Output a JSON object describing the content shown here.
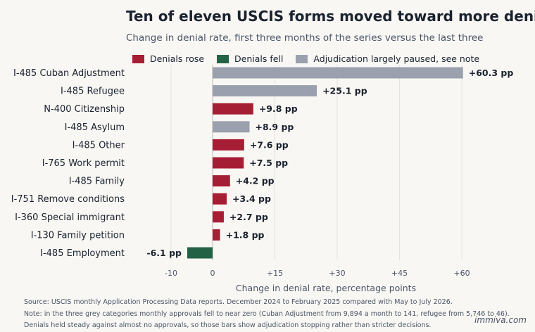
{
  "chart_data": {
    "type": "bar",
    "orientation": "horizontal",
    "title": "Ten of eleven USCIS forms moved toward more denials",
    "subtitle": "Change in denial rate, first three months of the series versus the last three",
    "xlabel": "Change in denial rate, percentage points",
    "xlim": [
      -15,
      72
    ],
    "xticks": [
      -10,
      0,
      15,
      30,
      45,
      60
    ],
    "xtick_labels": [
      "-10",
      "0",
      "+15",
      "+30",
      "+45",
      "+60"
    ],
    "grid": "vertical",
    "legend": [
      {
        "label": "Denials rose",
        "color": "#a61e34"
      },
      {
        "label": "Denials fell",
        "color": "#236245"
      },
      {
        "label": "Adjudication largely paused, see note",
        "color": "#9ba0ae"
      }
    ],
    "legend_position": "top",
    "categories": [
      "I-485 Cuban Adjustment",
      "I-485 Refugee",
      "N-400 Citizenship",
      "I-485 Asylum",
      "I-485 Other",
      "I-765 Work permit",
      "I-485 Family",
      "I-751 Remove conditions",
      "I-360 Special immigrant",
      "I-130 Family petition",
      "I-485 Employment"
    ],
    "values": [
      60.3,
      25.1,
      9.8,
      8.9,
      7.6,
      7.5,
      4.2,
      3.4,
      2.7,
      1.8,
      -6.1
    ],
    "value_labels": [
      "+60.3 pp",
      "+25.1 pp",
      "+9.8 pp",
      "+8.9 pp",
      "+7.6 pp",
      "+7.5 pp",
      "+4.2 pp",
      "+3.4 pp",
      "+2.7 pp",
      "+1.8 pp",
      "-6.1 pp"
    ],
    "groups": [
      "paused",
      "paused",
      "rose",
      "paused",
      "rose",
      "rose",
      "rose",
      "rose",
      "rose",
      "rose",
      "fell"
    ],
    "group_colors": {
      "rose": "#a61e34",
      "fell": "#236245",
      "paused": "#9ba0ae"
    }
  },
  "notes": [
    "Source: USCIS monthly Application Processing Data reports. December 2024 to February 2025 compared with May to July 2026.",
    "Note: in the three grey categories monthly approvals fell to near zero (Cuban Adjustment from 9,894 a month to 141, refugee from 5,746 to 46).",
    "Denials held steady against almost no approvals, so those bars show adjudication stopping rather than stricter decisions."
  ],
  "brand": "immiva.com"
}
